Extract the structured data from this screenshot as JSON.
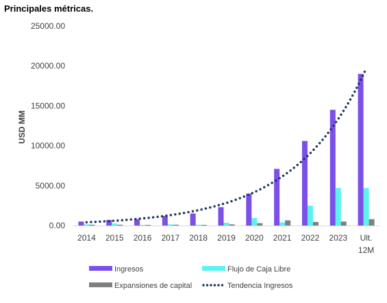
{
  "title": "Principales métricas.",
  "chart_data": {
    "type": "bar",
    "ylabel": "USD MM",
    "ylim": [
      0,
      25000
    ],
    "yticks": [
      0,
      5000,
      10000,
      15000,
      20000,
      25000
    ],
    "ytick_labels": [
      "0.00",
      "5000.00",
      "10000.00",
      "15000.00",
      "20000.00",
      "25000.00"
    ],
    "categories": [
      "2014",
      "2015",
      "2016",
      "2017",
      "2018",
      "2019",
      "2020",
      "2021",
      "2022",
      "2023",
      "Ult. 12M"
    ],
    "series": [
      {
        "name": "Ingresos",
        "color": "#7B4FE8",
        "values": [
          500,
          700,
          800,
          1200,
          1500,
          2300,
          4000,
          7100,
          10600,
          14500,
          19000
        ]
      },
      {
        "name": "Flujo de Caja Libre",
        "color": "#5CF2F2",
        "values": [
          150,
          250,
          80,
          150,
          100,
          350,
          950,
          400,
          2500,
          4700,
          4700
        ]
      },
      {
        "name": "Expansiones de capital",
        "color": "#7F7F7F",
        "values": [
          100,
          100,
          80,
          100,
          80,
          150,
          300,
          650,
          450,
          500,
          800
        ]
      }
    ],
    "trendline": {
      "name": "Tendencia Ingresos",
      "color": "#1F3864",
      "style": "dotted",
      "type": "exponential",
      "of_series": "Ingresos"
    },
    "legend_position": "bottom",
    "grid": false
  }
}
